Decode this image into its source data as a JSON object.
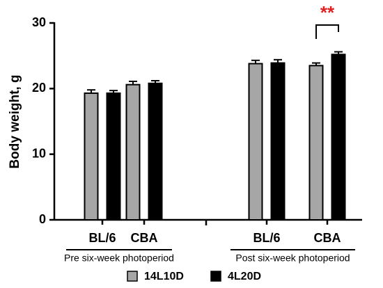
{
  "chart_data": {
    "type": "bar",
    "ylabel": "Body weight, g",
    "categories": [
      "BL/6",
      "CBA",
      "BL/6",
      "CBA"
    ],
    "groups": [
      "Pre six-week photoperiod",
      "Post six-week photoperiod"
    ],
    "series": [
      {
        "name": "14L10D",
        "color": "#a6a6a6",
        "values": [
          19.3,
          20.6,
          23.8,
          23.5
        ],
        "errors": [
          0.5,
          0.5,
          0.5,
          0.4
        ]
      },
      {
        "name": "4L20D",
        "color": "#000000",
        "values": [
          19.3,
          20.8,
          23.9,
          25.2
        ],
        "errors": [
          0.4,
          0.4,
          0.5,
          0.4
        ]
      }
    ],
    "annotation": "**",
    "annotation_color": "#e02020",
    "ylim": [
      0,
      30
    ],
    "yticks": [
      0,
      10,
      20,
      30
    ]
  }
}
